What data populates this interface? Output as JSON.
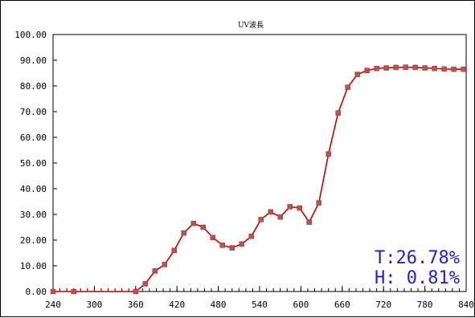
{
  "chart_data": {
    "type": "line",
    "title": "UV波長",
    "xlabel": "",
    "ylabel": "",
    "xlim": [
      240,
      840
    ],
    "ylim": [
      0,
      100
    ],
    "x_ticks": [
      "240",
      "300",
      "360",
      "420",
      "480",
      "540",
      "600",
      "660",
      "720",
      "780",
      "840"
    ],
    "y_ticks": [
      "0.00",
      "10.00",
      "20.00",
      "30.00",
      "40.00",
      "50.00",
      "60.00",
      "70.00",
      "80.00",
      "90.00",
      "100.00"
    ],
    "grid": false,
    "legend": "none",
    "series": [
      {
        "color": "#cc0000",
        "marker_color": "#c0504d",
        "x": [
          240,
          270,
          360,
          374,
          388,
          402,
          416,
          430,
          444,
          458,
          472,
          486,
          500,
          514,
          528,
          542,
          556,
          570,
          584,
          598,
          612,
          626,
          640,
          654,
          668,
          682,
          696,
          710,
          724,
          738,
          752,
          766,
          780,
          794,
          808,
          822,
          836
        ],
        "y": [
          0.0,
          0.0,
          0.0,
          3.0,
          8.0,
          10.5,
          16.0,
          22.8,
          26.5,
          25.0,
          21.0,
          18.0,
          17.0,
          18.5,
          21.5,
          28.0,
          31.0,
          29.0,
          33.0,
          32.5,
          27.0,
          34.5,
          53.5,
          69.5,
          79.5,
          84.5,
          86.0,
          86.8,
          87.0,
          87.2,
          87.3,
          87.2,
          87.0,
          86.8,
          86.6,
          86.5,
          86.5
        ]
      }
    ],
    "annotations": [
      {
        "text": "T:26.78%",
        "color": "#1f1fd6"
      },
      {
        "text": "H: 0.81%",
        "color": "#1f1fd6"
      }
    ]
  }
}
